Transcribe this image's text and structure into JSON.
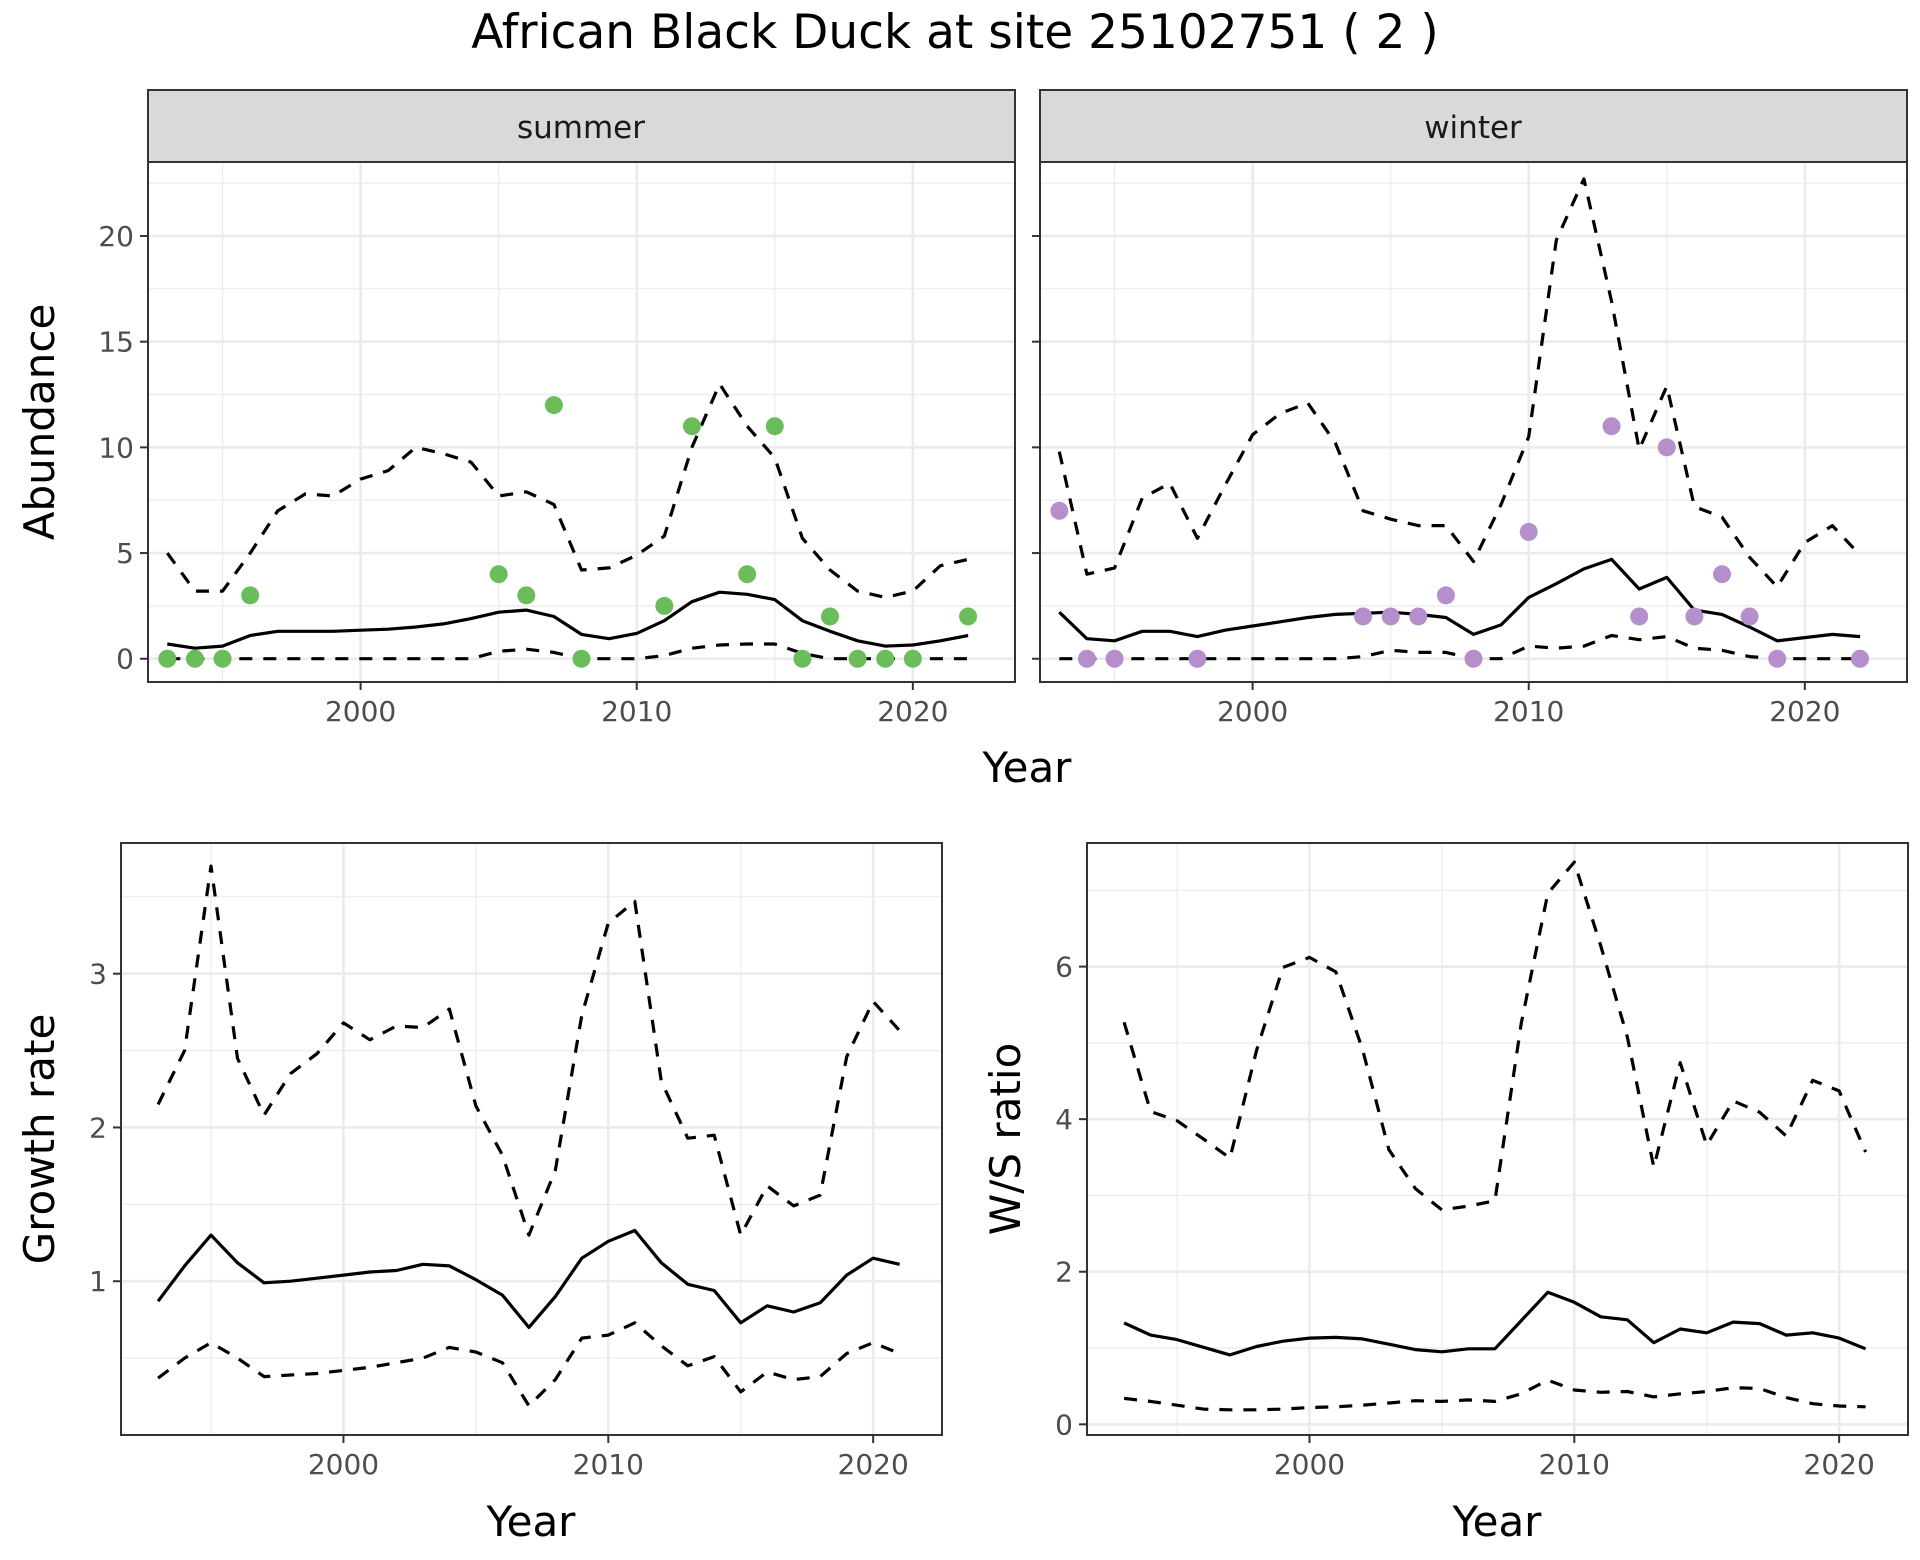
{
  "figure": {
    "title": "African Black Duck at site 25102751 ( 2 )"
  },
  "colors": {
    "summer_points": "#6bbd5b",
    "winter_points": "#b58fcb",
    "lines": "#000000",
    "grid": "#ebebeb",
    "strip_fill": "#d9d9d9"
  },
  "chart_data": [
    {
      "type": "line",
      "panel": "summer",
      "facet_label": "summer",
      "xlabel": "Year",
      "ylabel": "Abundance",
      "xlim": [
        1992.3,
        2023.7
      ],
      "ylim": [
        -1.1,
        23.5
      ],
      "xticks": [
        2000,
        2010,
        2020
      ],
      "yticks": [
        0,
        5,
        10,
        15,
        20
      ],
      "grid": true,
      "series": [
        {
          "style": "solid",
          "x": [
            1993,
            1994,
            1995,
            1996,
            1997,
            1998,
            1999,
            2000,
            2001,
            2002,
            2003,
            2004,
            2005,
            2006,
            2007,
            2008,
            2009,
            2010,
            2011,
            2012,
            2013,
            2014,
            2015,
            2016,
            2017,
            2018,
            2019,
            2020,
            2021,
            2022
          ],
          "y": [
            0.7,
            0.5,
            0.6,
            1.1,
            1.3,
            1.3,
            1.3,
            1.35,
            1.4,
            1.5,
            1.65,
            1.9,
            2.2,
            2.3,
            2.0,
            1.15,
            0.95,
            1.2,
            1.8,
            2.7,
            3.15,
            3.05,
            2.8,
            1.8,
            1.3,
            0.85,
            0.6,
            0.65,
            0.85,
            1.1
          ]
        },
        {
          "style": "dashed",
          "x": [
            1993,
            1994,
            1995,
            1996,
            1997,
            1998,
            1999,
            2000,
            2001,
            2002,
            2003,
            2004,
            2005,
            2006,
            2007,
            2008,
            2009,
            2010,
            2011,
            2012,
            2013,
            2014,
            2015,
            2016,
            2017,
            2018,
            2019,
            2020,
            2021,
            2022
          ],
          "y": [
            5.0,
            3.2,
            3.2,
            5.0,
            7.0,
            7.8,
            7.7,
            8.5,
            8.9,
            10.0,
            9.7,
            9.3,
            7.7,
            7.9,
            7.3,
            4.2,
            4.3,
            4.9,
            5.8,
            10.0,
            13.0,
            11.0,
            9.5,
            5.7,
            4.2,
            3.2,
            2.9,
            3.2,
            4.4,
            4.7
          ]
        },
        {
          "style": "dashed",
          "x": [
            1993,
            1994,
            1995,
            1996,
            1997,
            1998,
            1999,
            2000,
            2001,
            2002,
            2003,
            2004,
            2005,
            2006,
            2007,
            2008,
            2009,
            2010,
            2011,
            2012,
            2013,
            2014,
            2015,
            2016,
            2017,
            2018,
            2019,
            2020,
            2021,
            2022
          ],
          "y": [
            0,
            0,
            0,
            0,
            0,
            0,
            0,
            0,
            0,
            0,
            0,
            0,
            0.35,
            0.45,
            0.3,
            0,
            0,
            0,
            0.15,
            0.5,
            0.65,
            0.7,
            0.7,
            0.25,
            0,
            0,
            0,
            0,
            0,
            0
          ]
        }
      ],
      "points": {
        "x": [
          1993,
          1994,
          1995,
          1996,
          2005,
          2006,
          2007,
          2008,
          2011,
          2012,
          2014,
          2015,
          2016,
          2017,
          2018,
          2019,
          2020,
          2022
        ],
        "y": [
          0,
          0,
          0,
          3,
          4,
          3,
          12,
          0,
          2.5,
          11,
          4,
          11,
          0,
          2,
          0,
          0,
          0,
          2
        ]
      }
    },
    {
      "type": "line",
      "panel": "winter",
      "facet_label": "winter",
      "xlabel": "Year",
      "ylabel": "Abundance",
      "xlim": [
        1992.3,
        2023.7
      ],
      "ylim": [
        -1.1,
        23.5
      ],
      "xticks": [
        2000,
        2010,
        2020
      ],
      "yticks": [
        0,
        5,
        10,
        15,
        20
      ],
      "grid": true,
      "series": [
        {
          "style": "solid",
          "x": [
            1993,
            1994,
            1995,
            1996,
            1997,
            1998,
            1999,
            2000,
            2001,
            2002,
            2003,
            2004,
            2005,
            2006,
            2007,
            2008,
            2009,
            2010,
            2011,
            2012,
            2013,
            2014,
            2015,
            2016,
            2017,
            2018,
            2019,
            2020,
            2021,
            2022
          ],
          "y": [
            2.2,
            0.95,
            0.85,
            1.3,
            1.3,
            1.05,
            1.35,
            1.55,
            1.75,
            1.95,
            2.1,
            2.15,
            2.2,
            2.1,
            1.95,
            1.15,
            1.6,
            2.9,
            3.55,
            4.25,
            4.7,
            3.3,
            3.85,
            2.3,
            2.1,
            1.5,
            0.85,
            1.0,
            1.15,
            1.05
          ]
        },
        {
          "style": "dashed",
          "x": [
            1993,
            1994,
            1995,
            1996,
            1997,
            1998,
            1999,
            2000,
            2001,
            2002,
            2003,
            2004,
            2005,
            2006,
            2007,
            2008,
            2009,
            2010,
            2011,
            2012,
            2013,
            2014,
            2015,
            2016,
            2017,
            2018,
            2019,
            2020,
            2021,
            2022
          ],
          "y": [
            9.8,
            4.0,
            4.3,
            7.6,
            8.3,
            5.7,
            8.2,
            10.6,
            11.6,
            12.1,
            10.2,
            7.0,
            6.6,
            6.3,
            6.3,
            4.6,
            7.3,
            10.5,
            19.8,
            22.7,
            16.9,
            9.9,
            12.9,
            7.2,
            6.7,
            4.8,
            3.4,
            5.5,
            6.3,
            4.9
          ]
        },
        {
          "style": "dashed",
          "x": [
            1993,
            1994,
            1995,
            1996,
            1997,
            1998,
            1999,
            2000,
            2001,
            2002,
            2003,
            2004,
            2005,
            2006,
            2007,
            2008,
            2009,
            2010,
            2011,
            2012,
            2013,
            2014,
            2015,
            2016,
            2017,
            2018,
            2019,
            2020,
            2021,
            2022
          ],
          "y": [
            0,
            0,
            0,
            0,
            0,
            0,
            0,
            0,
            0,
            0,
            0,
            0.1,
            0.4,
            0.3,
            0.3,
            0,
            0,
            0.6,
            0.5,
            0.6,
            1.1,
            0.9,
            1.05,
            0.5,
            0.4,
            0.1,
            0,
            0,
            0,
            0
          ]
        }
      ],
      "points": {
        "x": [
          1993,
          1994,
          1995,
          1998,
          2004,
          2005,
          2006,
          2007,
          2008,
          2010,
          2013,
          2014,
          2015,
          2016,
          2017,
          2018,
          2019,
          2022
        ],
        "y": [
          7,
          0,
          0,
          0,
          2,
          2,
          2,
          3,
          0,
          6,
          11,
          2,
          10,
          2,
          4,
          2,
          0,
          0
        ]
      }
    },
    {
      "type": "line",
      "panel": "growth",
      "xlabel": "Year",
      "ylabel": "Growth rate",
      "xlim": [
        1991.6,
        2022.6
      ],
      "ylim": [
        0.0,
        3.85
      ],
      "xticks": [
        2000,
        2010,
        2020
      ],
      "yticks": [
        1,
        2,
        3
      ],
      "grid": true,
      "series": [
        {
          "style": "solid",
          "x": [
            1993,
            1994,
            1995,
            1996,
            1997,
            1998,
            1999,
            2000,
            2001,
            2002,
            2003,
            2004,
            2005,
            2006,
            2007,
            2008,
            2009,
            2010,
            2011,
            2012,
            2013,
            2014,
            2015,
            2016,
            2017,
            2018,
            2019,
            2020,
            2021
          ],
          "y": [
            0.87,
            1.1,
            1.3,
            1.12,
            0.99,
            1.0,
            1.02,
            1.04,
            1.06,
            1.07,
            1.11,
            1.1,
            1.01,
            0.91,
            0.7,
            0.9,
            1.15,
            1.26,
            1.33,
            1.12,
            0.98,
            0.94,
            0.73,
            0.84,
            0.8,
            0.86,
            1.04,
            1.15,
            1.11
          ]
        },
        {
          "style": "dashed",
          "x": [
            1993,
            1994,
            1995,
            1996,
            1997,
            1998,
            1999,
            2000,
            2001,
            2002,
            2003,
            2004,
            2005,
            2006,
            2007,
            2008,
            2009,
            2010,
            2011,
            2012,
            2013,
            2014,
            2015,
            2016,
            2017,
            2018,
            2019,
            2020,
            2021
          ],
          "y": [
            2.15,
            2.5,
            3.7,
            2.45,
            2.08,
            2.35,
            2.48,
            2.68,
            2.57,
            2.66,
            2.65,
            2.77,
            2.14,
            1.82,
            1.3,
            1.72,
            2.73,
            3.33,
            3.47,
            2.3,
            1.93,
            1.95,
            1.3,
            1.62,
            1.49,
            1.56,
            2.46,
            2.82,
            2.63
          ]
        },
        {
          "style": "dashed",
          "x": [
            1993,
            1994,
            1995,
            1996,
            1997,
            1998,
            1999,
            2000,
            2001,
            2002,
            2003,
            2004,
            2005,
            2006,
            2007,
            2008,
            2009,
            2010,
            2011,
            2012,
            2013,
            2014,
            2015,
            2016,
            2017,
            2018,
            2019,
            2020,
            2021
          ],
          "y": [
            0.37,
            0.5,
            0.6,
            0.5,
            0.38,
            0.39,
            0.4,
            0.42,
            0.44,
            0.47,
            0.5,
            0.57,
            0.54,
            0.47,
            0.19,
            0.36,
            0.63,
            0.65,
            0.73,
            0.58,
            0.45,
            0.51,
            0.28,
            0.41,
            0.36,
            0.38,
            0.53,
            0.6,
            0.53
          ]
        }
      ]
    },
    {
      "type": "line",
      "panel": "ratio",
      "xlabel": "Year",
      "ylabel": "W/S ratio",
      "xlim": [
        1991.6,
        2022.6
      ],
      "ylim": [
        -0.14,
        7.62
      ],
      "xticks": [
        2000,
        2010,
        2020
      ],
      "yticks": [
        0,
        2,
        4,
        6
      ],
      "grid": true,
      "series": [
        {
          "style": "solid",
          "x": [
            1993,
            1994,
            1995,
            1996,
            1997,
            1998,
            1999,
            2000,
            2001,
            2002,
            2003,
            2004,
            2005,
            2006,
            2007,
            2008,
            2009,
            2010,
            2011,
            2012,
            2013,
            2014,
            2015,
            2016,
            2017,
            2018,
            2019,
            2020,
            2021
          ],
          "y": [
            1.33,
            1.17,
            1.11,
            1.01,
            0.91,
            1.02,
            1.09,
            1.13,
            1.14,
            1.12,
            1.05,
            0.98,
            0.95,
            0.99,
            0.99,
            1.36,
            1.73,
            1.6,
            1.41,
            1.37,
            1.07,
            1.25,
            1.2,
            1.34,
            1.32,
            1.17,
            1.2,
            1.13,
            0.99
          ]
        },
        {
          "style": "dashed",
          "x": [
            1993,
            1994,
            1995,
            1996,
            1997,
            1998,
            1999,
            2000,
            2001,
            2002,
            2003,
            2004,
            2005,
            2006,
            2007,
            2008,
            2009,
            2010,
            2011,
            2012,
            2013,
            2014,
            2015,
            2016,
            2017,
            2018,
            2019,
            2020,
            2021
          ],
          "y": [
            5.27,
            4.1,
            3.98,
            3.74,
            3.49,
            4.9,
            5.99,
            6.12,
            5.93,
            4.92,
            3.6,
            3.09,
            2.81,
            2.86,
            2.93,
            5.26,
            6.96,
            7.37,
            6.27,
            5.08,
            3.37,
            4.74,
            3.66,
            4.24,
            4.09,
            3.78,
            4.51,
            4.37,
            3.57
          ]
        },
        {
          "style": "dashed",
          "x": [
            1993,
            1994,
            1995,
            1996,
            1997,
            1998,
            1999,
            2000,
            2001,
            2002,
            2003,
            2004,
            2005,
            2006,
            2007,
            2008,
            2009,
            2010,
            2011,
            2012,
            2013,
            2014,
            2015,
            2016,
            2017,
            2018,
            2019,
            2020,
            2021
          ],
          "y": [
            0.34,
            0.3,
            0.25,
            0.2,
            0.19,
            0.19,
            0.2,
            0.22,
            0.23,
            0.25,
            0.28,
            0.31,
            0.3,
            0.32,
            0.3,
            0.4,
            0.58,
            0.45,
            0.42,
            0.43,
            0.36,
            0.4,
            0.43,
            0.48,
            0.47,
            0.35,
            0.27,
            0.24,
            0.23
          ]
        }
      ]
    }
  ]
}
